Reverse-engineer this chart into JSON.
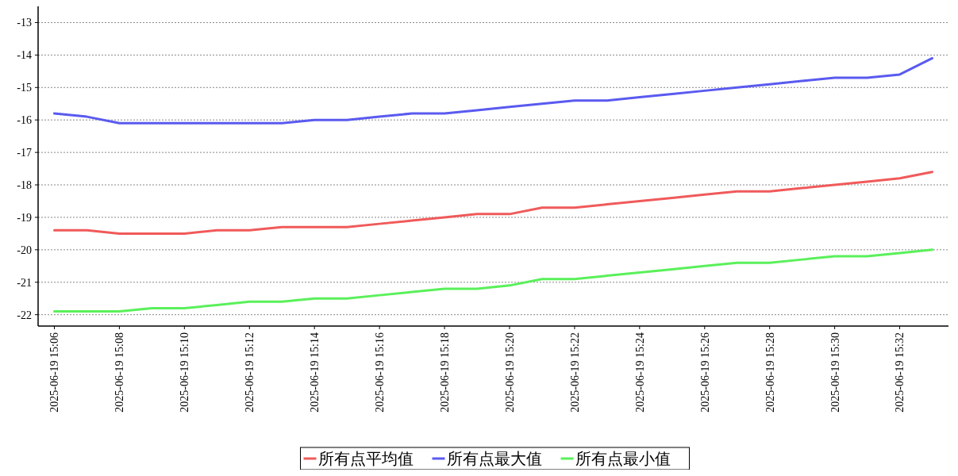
{
  "chart_data": {
    "type": "line",
    "x": [
      "2025-06-19T15:06",
      "2025-06-19T15:07",
      "2025-06-19T15:08",
      "2025-06-19T15:09",
      "2025-06-19T15:10",
      "2025-06-19T15:11",
      "2025-06-19T15:12",
      "2025-06-19T15:13",
      "2025-06-19T15:14",
      "2025-06-19T15:15",
      "2025-06-19T15:16",
      "2025-06-19T15:17",
      "2025-06-19T15:18",
      "2025-06-19T15:19",
      "2025-06-19T15:20",
      "2025-06-19T15:21",
      "2025-06-19T15:22",
      "2025-06-19T15:23",
      "2025-06-19T15:24",
      "2025-06-19T15:25",
      "2025-06-19T15:26",
      "2025-06-19T15:27",
      "2025-06-19T15:28",
      "2025-06-19T15:29",
      "2025-06-19T15:30",
      "2025-06-19T15:31",
      "2025-06-19T15:32",
      "2025-06-19T15:33"
    ],
    "series": [
      {
        "name": "所有点平均值",
        "color": "#f05a5a",
        "values": [
          -19.4,
          -19.4,
          -19.5,
          -19.5,
          -19.5,
          -19.4,
          -19.4,
          -19.3,
          -19.3,
          -19.3,
          -19.2,
          -19.1,
          -19.0,
          -18.9,
          -18.9,
          -18.7,
          -18.7,
          -18.6,
          -18.5,
          -18.4,
          -18.3,
          -18.2,
          -18.2,
          -18.1,
          -18.0,
          -17.9,
          -17.8,
          -17.6
        ]
      },
      {
        "name": "所有点最大值",
        "color": "#5a5af0",
        "values": [
          -15.8,
          -15.9,
          -16.1,
          -16.1,
          -16.1,
          -16.1,
          -16.1,
          -16.1,
          -16.0,
          -16.0,
          -15.9,
          -15.8,
          -15.8,
          -15.7,
          -15.6,
          -15.5,
          -15.4,
          -15.4,
          -15.3,
          -15.2,
          -15.1,
          -15.0,
          -14.9,
          -14.8,
          -14.7,
          -14.7,
          -14.6,
          -14.1
        ]
      },
      {
        "name": "所有点最小值",
        "color": "#5af05a",
        "values": [
          -21.9,
          -21.9,
          -21.9,
          -21.8,
          -21.8,
          -21.7,
          -21.6,
          -21.6,
          -21.5,
          -21.5,
          -21.4,
          -21.3,
          -21.2,
          -21.2,
          -21.1,
          -20.9,
          -20.9,
          -20.8,
          -20.7,
          -20.6,
          -20.5,
          -20.4,
          -20.4,
          -20.3,
          -20.2,
          -20.2,
          -20.1,
          -20.0
        ]
      }
    ],
    "xlim": [
      "2025-06-19T15:05:30",
      "2025-06-19T15:33:30"
    ],
    "xticks": [
      {
        "value": "2025-06-19T15:06",
        "label": "2025-06-19 15:06"
      },
      {
        "value": "2025-06-19T15:08",
        "label": "2025-06-19 15:08"
      },
      {
        "value": "2025-06-19T15:10",
        "label": "2025-06-19 15:10"
      },
      {
        "value": "2025-06-19T15:12",
        "label": "2025-06-19 15:12"
      },
      {
        "value": "2025-06-19T15:14",
        "label": "2025-06-19 15:14"
      },
      {
        "value": "2025-06-19T15:16",
        "label": "2025-06-19 15:16"
      },
      {
        "value": "2025-06-19T15:18",
        "label": "2025-06-19 15:18"
      },
      {
        "value": "2025-06-19T15:20",
        "label": "2025-06-19 15:20"
      },
      {
        "value": "2025-06-19T15:22",
        "label": "2025-06-19 15:22"
      },
      {
        "value": "2025-06-19T15:24",
        "label": "2025-06-19 15:24"
      },
      {
        "value": "2025-06-19T15:26",
        "label": "2025-06-19 15:26"
      },
      {
        "value": "2025-06-19T15:28",
        "label": "2025-06-19 15:28"
      },
      {
        "value": "2025-06-19T15:30",
        "label": "2025-06-19 15:30"
      },
      {
        "value": "2025-06-19T15:32",
        "label": "2025-06-19 15:32"
      }
    ],
    "ylim": [
      -22.35,
      -12.5
    ],
    "yticks": [
      -22,
      -21,
      -20,
      -19,
      -18,
      -17,
      -16,
      -15,
      -14,
      -13
    ],
    "grid": "y",
    "legend": "bottom",
    "marker": "none",
    "line_style": "solid"
  }
}
